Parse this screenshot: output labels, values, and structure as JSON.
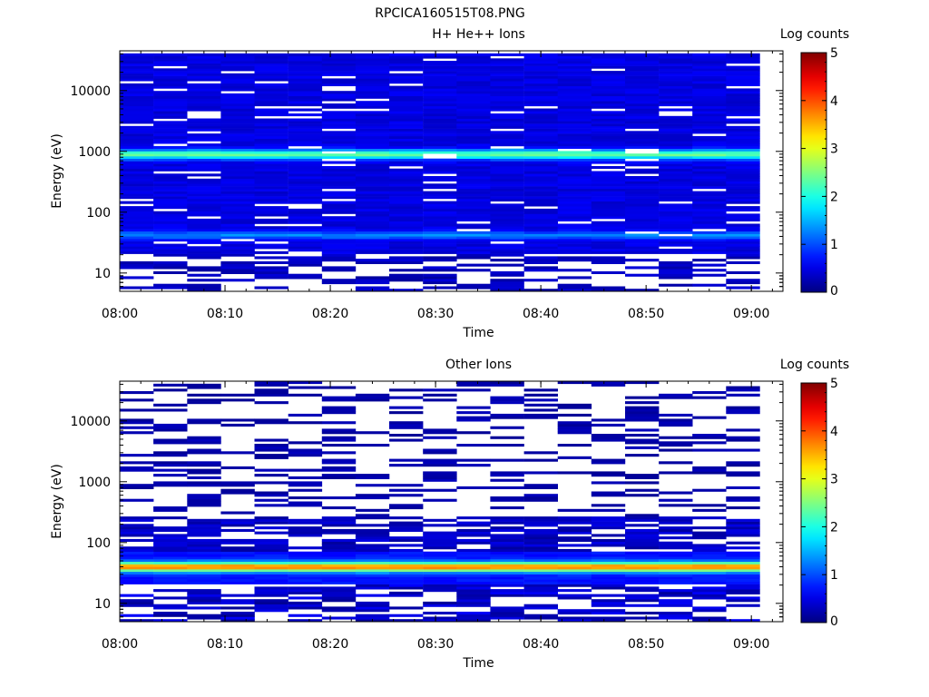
{
  "file_title": "RPCICA160515T08.PNG",
  "chart_data": [
    {
      "type": "heatmap",
      "title": "H+ He++ Ions",
      "xlabel": "Time",
      "ylabel": "Energy (eV)",
      "yscale": "log",
      "ylim": [
        5,
        45000
      ],
      "xlim": [
        "08:00",
        "09:03"
      ],
      "x_ticks": [
        "08:00",
        "08:10",
        "08:20",
        "08:30",
        "08:40",
        "08:50",
        "09:00"
      ],
      "y_ticks": [
        "10",
        "100",
        "1000",
        "10000"
      ],
      "colorbar": {
        "label": "Log counts",
        "range": [
          0,
          5
        ],
        "ticks": [
          "0",
          "1",
          "2",
          "3",
          "4",
          "5"
        ],
        "colormap": "jet"
      },
      "column_width_min": 3.2,
      "columns_start": "08:00",
      "n_columns": 19,
      "features": [
        {
          "energy_eV": 900,
          "log_counts": 2.2,
          "note": "main band"
        },
        {
          "energy_eV": 40,
          "log_counts": 1.2,
          "note": "low-energy band"
        }
      ]
    },
    {
      "type": "heatmap",
      "title": "Other Ions",
      "xlabel": "Time",
      "ylabel": "Energy (eV)",
      "yscale": "log",
      "ylim": [
        5,
        45000
      ],
      "xlim": [
        "08:00",
        "09:03"
      ],
      "x_ticks": [
        "08:00",
        "08:10",
        "08:20",
        "08:30",
        "08:40",
        "08:50",
        "09:00"
      ],
      "y_ticks": [
        "10",
        "100",
        "1000",
        "10000"
      ],
      "colorbar": {
        "label": "Log counts",
        "range": [
          0,
          5
        ],
        "ticks": [
          "0",
          "1",
          "2",
          "3",
          "4",
          "5"
        ],
        "colormap": "jet"
      },
      "column_width_min": 3.2,
      "columns_start": "08:00",
      "n_columns": 19,
      "features": [
        {
          "energy_eV": 40,
          "log_counts": 3.7,
          "note": "strong band"
        }
      ]
    }
  ]
}
